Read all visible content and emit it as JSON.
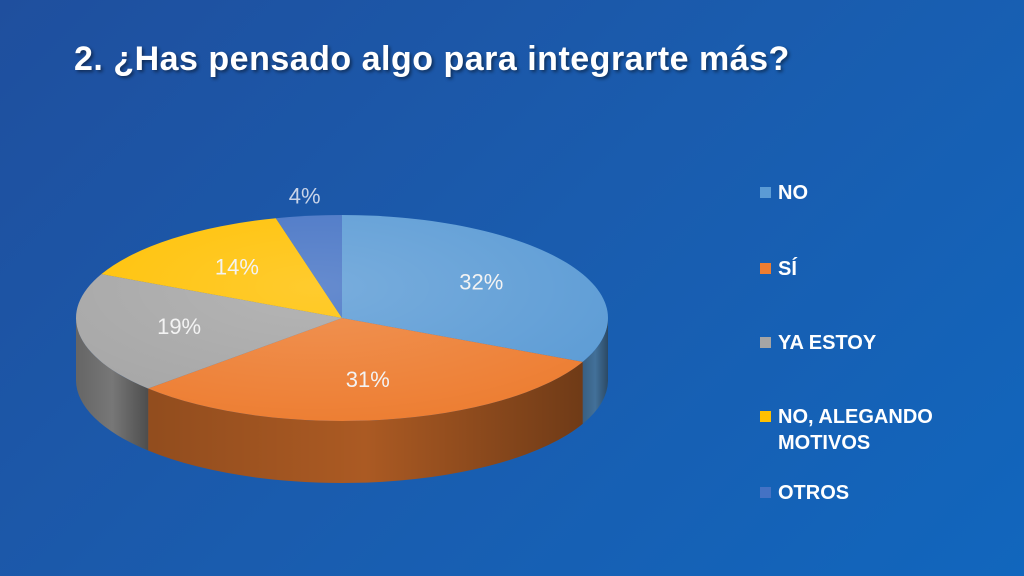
{
  "title": "2. ¿Has pensado algo para integrarte más?",
  "chart_data": {
    "type": "pie",
    "style": "3d",
    "categories": [
      "NO",
      "SÍ",
      "YA ESTOY",
      "NO, ALEGANDO MOTIVOS",
      "OTROS"
    ],
    "values": [
      32,
      31,
      19,
      14,
      4
    ],
    "labels": [
      "32%",
      "31%",
      "19%",
      "14%",
      "4%"
    ],
    "colors": [
      "#5b9bd5",
      "#ed7d31",
      "#a5a5a5",
      "#ffc000",
      "#4472c4"
    ],
    "legend_position": "right"
  }
}
